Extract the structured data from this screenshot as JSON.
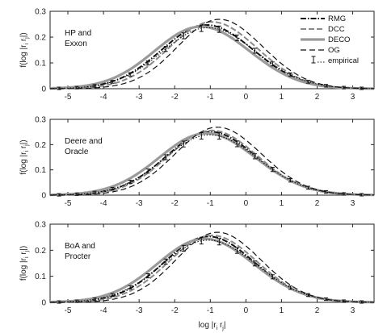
{
  "chart_data": [
    {
      "type": "line",
      "annotation": [
        "HP and",
        "Exxon"
      ],
      "ylabel": {
        "main": "f(log |r",
        "s1": "i",
        "mid": " r",
        "s2": "j",
        "end": "|)"
      },
      "xlim": [
        -5.5,
        3.6
      ],
      "ylim": [
        0,
        0.3
      ],
      "xticks": [
        "-5",
        "-4",
        "-3",
        "-2",
        "-1",
        "0",
        "1",
        "2",
        "3"
      ],
      "yticks": [
        "0",
        "0.1",
        "0.2",
        "0.3"
      ],
      "legend": {
        "position": "top-right",
        "entries": [
          "RMG",
          "DCC",
          "DECO",
          "OG",
          "empirical"
        ]
      },
      "series": [
        {
          "name": "RMG",
          "mu": -1.0,
          "sigma": 1.3,
          "peak": 0.246
        },
        {
          "name": "DCC",
          "mu": -0.85,
          "sigma": 1.25,
          "peak": 0.258
        },
        {
          "name": "DECO",
          "mu": -1.15,
          "sigma": 1.34,
          "peak": 0.24
        },
        {
          "name": "OG",
          "mu": -0.65,
          "sigma": 1.2,
          "peak": 0.268
        },
        {
          "name": "empirical",
          "mu": -0.95,
          "sigma": 1.32,
          "peak": 0.236
        }
      ]
    },
    {
      "type": "line",
      "annotation": [
        "Deere and",
        "Oracle"
      ],
      "ylabel": {
        "main": "f(log |r",
        "s1": "i",
        "mid": " r",
        "s2": "j",
        "end": "|)"
      },
      "xlim": [
        -5.5,
        3.6
      ],
      "ylim": [
        0,
        0.3
      ],
      "xticks": [
        "-5",
        "-4",
        "-3",
        "-2",
        "-1",
        "0",
        "1",
        "2",
        "3"
      ],
      "yticks": [
        "0",
        "0.1",
        "0.2",
        "0.3"
      ],
      "series": [
        {
          "name": "RMG",
          "mu": -0.9,
          "sigma": 1.28,
          "peak": 0.25
        },
        {
          "name": "DCC",
          "mu": -0.85,
          "sigma": 1.26,
          "peak": 0.255
        },
        {
          "name": "DECO",
          "mu": -1.0,
          "sigma": 1.36,
          "peak": 0.244
        },
        {
          "name": "OG",
          "mu": -0.7,
          "sigma": 1.22,
          "peak": 0.268
        },
        {
          "name": "empirical",
          "mu": -0.9,
          "sigma": 1.32,
          "peak": 0.238
        }
      ]
    },
    {
      "type": "line",
      "annotation": [
        "BoA and",
        "Procter"
      ],
      "ylabel": {
        "main": "f(log |r",
        "s1": "i",
        "mid": " r",
        "s2": "j",
        "end": "|)"
      },
      "xlabel": {
        "main": "log |r",
        "s1": "i",
        "mid": " r",
        "s2": "j",
        "end": "|"
      },
      "xlim": [
        -5.5,
        3.6
      ],
      "ylim": [
        0,
        0.3
      ],
      "xticks": [
        "-5",
        "-4",
        "-3",
        "-2",
        "-1",
        "0",
        "1",
        "2",
        "3"
      ],
      "yticks": [
        "0",
        "0.1",
        "0.2",
        "0.3"
      ],
      "series": [
        {
          "name": "RMG",
          "mu": -0.95,
          "sigma": 1.28,
          "peak": 0.252
        },
        {
          "name": "DCC",
          "mu": -0.85,
          "sigma": 1.25,
          "peak": 0.256
        },
        {
          "name": "DECO",
          "mu": -1.05,
          "sigma": 1.36,
          "peak": 0.243
        },
        {
          "name": "OG",
          "mu": -0.7,
          "sigma": 1.2,
          "peak": 0.268
        },
        {
          "name": "empirical",
          "mu": -0.95,
          "sigma": 1.33,
          "peak": 0.238
        }
      ]
    }
  ]
}
